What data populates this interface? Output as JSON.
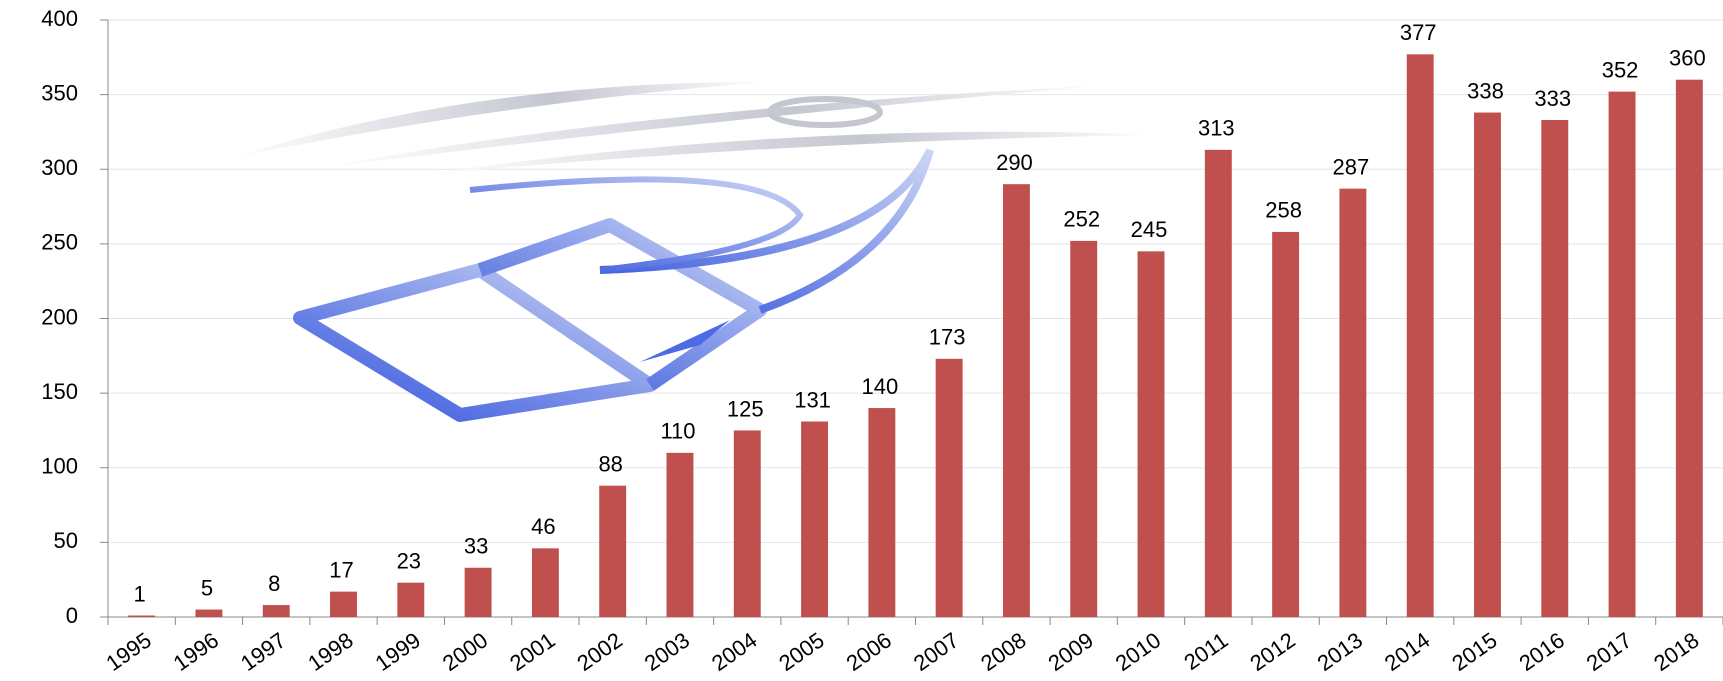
{
  "chart_data": {
    "type": "bar",
    "categories": [
      "1995",
      "1996",
      "1997",
      "1998",
      "1999",
      "2000",
      "2001",
      "2002",
      "2003",
      "2004",
      "2005",
      "2006",
      "2007",
      "2008",
      "2009",
      "2010",
      "2011",
      "2012",
      "2013",
      "2014",
      "2015",
      "2016",
      "2017",
      "2018"
    ],
    "values": [
      1,
      5,
      8,
      17,
      23,
      33,
      46,
      88,
      110,
      125,
      131,
      140,
      173,
      290,
      252,
      245,
      313,
      258,
      287,
      377,
      338,
      333,
      352,
      360
    ],
    "color": "#c0504d",
    "ylim": [
      0,
      400
    ],
    "yticks": [
      0,
      50,
      100,
      150,
      200,
      250,
      300,
      350,
      400
    ],
    "grid": true
  }
}
